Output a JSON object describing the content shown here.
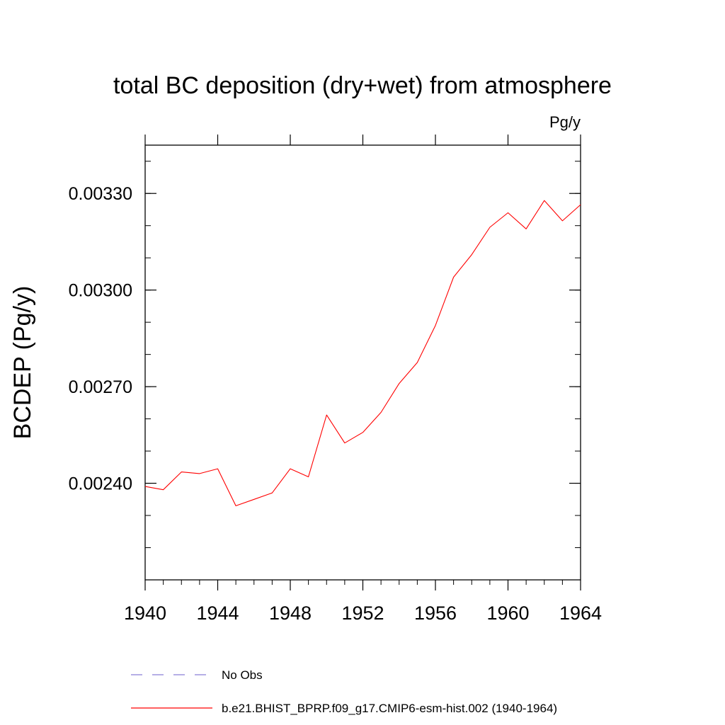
{
  "chart_data": {
    "type": "line",
    "title": "total BC deposition (dry+wet) from atmosphere",
    "units": "Pg/y",
    "ylabel": "BCDEP  (Pg/y)",
    "xlabel": "",
    "xlim": [
      1940,
      1964
    ],
    "ylim": [
      0.0021,
      0.00345
    ],
    "x_ticks": [
      1940,
      1944,
      1948,
      1952,
      1956,
      1960,
      1964
    ],
    "x_tick_labels": [
      "1940",
      "1944",
      "1948",
      "1952",
      "1956",
      "1960",
      "1964"
    ],
    "y_ticks": [
      0.0024,
      0.0027,
      0.003,
      0.0033
    ],
    "y_tick_labels": [
      "0.00240",
      "0.00270",
      "0.00300",
      "0.00330"
    ],
    "y_minor_step": 0.0001,
    "x_minor_step": 1,
    "series": [
      {
        "name": "b.e21.BHIST_BPRP.f09_g17.CMIP6-esm-hist.002 (1940-1964)",
        "color": "#ff0000",
        "style": "solid",
        "x": [
          1940,
          1941,
          1942,
          1943,
          1944,
          1945,
          1946,
          1947,
          1948,
          1949,
          1950,
          1951,
          1952,
          1953,
          1954,
          1955,
          1956,
          1957,
          1958,
          1959,
          1960,
          1961,
          1962,
          1963,
          1964
        ],
        "values": [
          0.00239,
          0.00238,
          0.002435,
          0.00243,
          0.002445,
          0.00233,
          0.00235,
          0.00237,
          0.002445,
          0.00242,
          0.002612,
          0.002525,
          0.002558,
          0.00262,
          0.00271,
          0.002775,
          0.00289,
          0.00304,
          0.00311,
          0.003195,
          0.00324,
          0.00319,
          0.003278,
          0.003215,
          0.003265
        ]
      }
    ],
    "legend": [
      {
        "label": "No Obs",
        "color": "#8a7fd6",
        "style": "dashed"
      },
      {
        "label": "b.e21.BHIST_BPRP.f09_g17.CMIP6-esm-hist.002 (1940-1964)",
        "color": "#ff0000",
        "style": "solid"
      }
    ],
    "legend_position": "bottom"
  }
}
